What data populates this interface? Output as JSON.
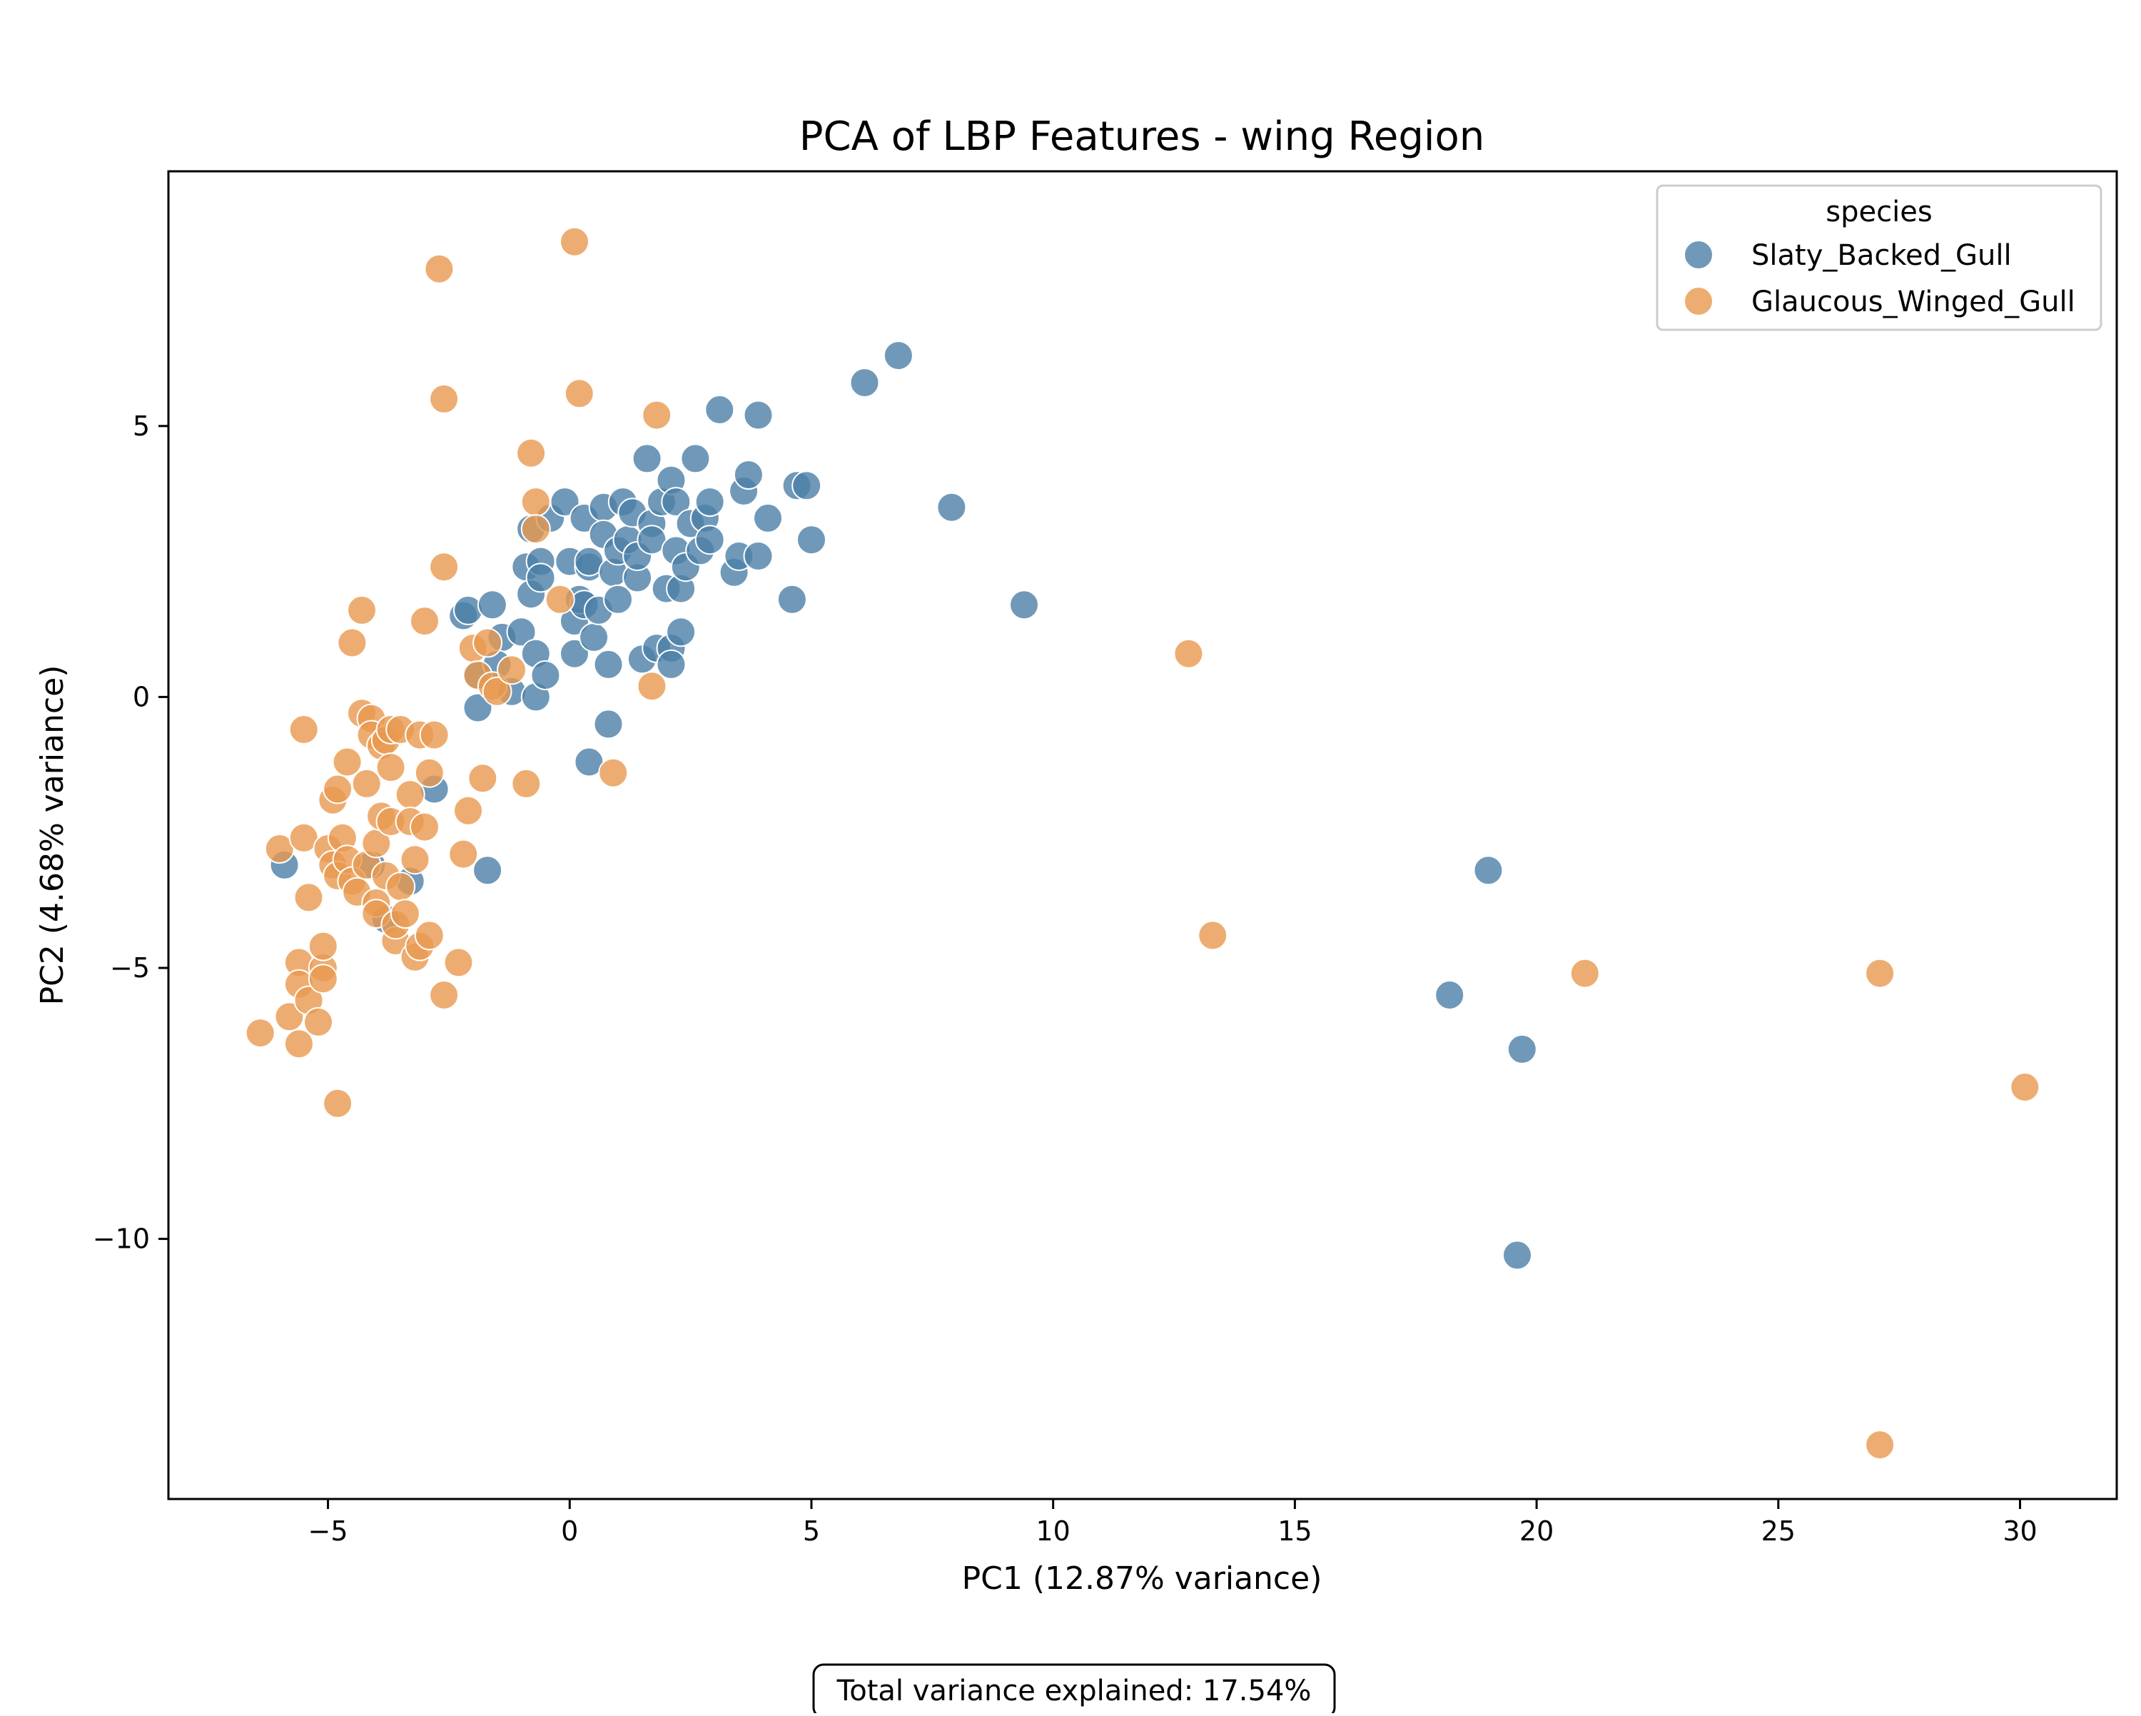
{
  "chart_data": {
    "type": "scatter",
    "title": "PCA of LBP Features - wing Region",
    "xlabel": "PC1 (12.87% variance)",
    "ylabel": "PC2 (4.68% variance)",
    "xlim": [
      -8.3,
      32
    ],
    "ylim": [
      -14.8,
      9.7
    ],
    "xticks": [
      -5,
      0,
      5,
      10,
      15,
      20,
      25,
      30
    ],
    "yticks": [
      -10,
      -5,
      0,
      5
    ],
    "xtick_labels": [
      "−5",
      "0",
      "5",
      "10",
      "15",
      "20",
      "25",
      "30"
    ],
    "ytick_labels": [
      "−10",
      "−5",
      "0",
      "5"
    ],
    "grid": false,
    "legend": {
      "title": "species",
      "position": "upper right"
    },
    "annotation": "Total variance explained: 17.54%",
    "series": [
      {
        "name": "Slaty_Backed_Gull",
        "color": "#4c7fa8",
        "points": [
          [
            -5.9,
            -3.1
          ],
          [
            -4.1,
            -3.1
          ],
          [
            -3.8,
            -4.1
          ],
          [
            -3.3,
            -3.4
          ],
          [
            -2.8,
            -1.7
          ],
          [
            -2.2,
            1.5
          ],
          [
            -2.1,
            1.6
          ],
          [
            -1.9,
            0.4
          ],
          [
            -1.9,
            -0.2
          ],
          [
            -1.7,
            -3.2
          ],
          [
            -1.6,
            1.7
          ],
          [
            -1.4,
            1.1
          ],
          [
            -1.5,
            0.6
          ],
          [
            -1.2,
            0.1
          ],
          [
            -1.0,
            1.2
          ],
          [
            -0.9,
            2.4
          ],
          [
            -0.8,
            1.9
          ],
          [
            -0.8,
            3.1
          ],
          [
            -0.7,
            0.8
          ],
          [
            -0.7,
            0.0
          ],
          [
            -0.6,
            2.5
          ],
          [
            -0.6,
            2.2
          ],
          [
            -0.5,
            0.4
          ],
          [
            -0.4,
            3.3
          ],
          [
            -0.1,
            3.6
          ],
          [
            0.0,
            2.5
          ],
          [
            0.1,
            1.4
          ],
          [
            0.1,
            0.8
          ],
          [
            0.2,
            1.8
          ],
          [
            0.3,
            3.3
          ],
          [
            0.3,
            1.7
          ],
          [
            0.4,
            2.4
          ],
          [
            0.4,
            2.5
          ],
          [
            0.4,
            -1.2
          ],
          [
            0.5,
            1.1
          ],
          [
            0.6,
            1.6
          ],
          [
            0.7,
            3.5
          ],
          [
            0.7,
            3.0
          ],
          [
            0.8,
            0.6
          ],
          [
            0.8,
            -0.5
          ],
          [
            0.9,
            2.3
          ],
          [
            1.0,
            2.7
          ],
          [
            1.0,
            1.8
          ],
          [
            1.1,
            3.6
          ],
          [
            1.2,
            2.9
          ],
          [
            1.3,
            3.4
          ],
          [
            1.4,
            2.2
          ],
          [
            1.4,
            2.6
          ],
          [
            1.5,
            0.7
          ],
          [
            1.6,
            4.4
          ],
          [
            1.7,
            3.2
          ],
          [
            1.7,
            2.9
          ],
          [
            1.8,
            0.9
          ],
          [
            1.9,
            3.6
          ],
          [
            2.0,
            2.0
          ],
          [
            2.1,
            4.0
          ],
          [
            2.1,
            0.9
          ],
          [
            2.1,
            0.6
          ],
          [
            2.2,
            2.7
          ],
          [
            2.2,
            3.6
          ],
          [
            2.3,
            2.0
          ],
          [
            2.3,
            1.2
          ],
          [
            2.4,
            2.4
          ],
          [
            2.5,
            3.2
          ],
          [
            2.6,
            4.4
          ],
          [
            2.7,
            2.7
          ],
          [
            2.8,
            3.3
          ],
          [
            2.9,
            2.9
          ],
          [
            2.9,
            3.6
          ],
          [
            3.1,
            5.3
          ],
          [
            3.4,
            2.3
          ],
          [
            3.5,
            2.6
          ],
          [
            3.6,
            3.8
          ],
          [
            3.7,
            4.1
          ],
          [
            3.9,
            5.2
          ],
          [
            3.9,
            2.6
          ],
          [
            4.1,
            3.3
          ],
          [
            4.6,
            1.8
          ],
          [
            4.7,
            3.9
          ],
          [
            4.9,
            3.9
          ],
          [
            5.0,
            2.9
          ],
          [
            6.1,
            5.8
          ],
          [
            6.8,
            6.3
          ],
          [
            7.9,
            3.5
          ],
          [
            9.4,
            1.7
          ],
          [
            18.2,
            -5.5
          ],
          [
            19.0,
            -3.2
          ],
          [
            19.6,
            -10.3
          ],
          [
            19.7,
            -6.5
          ]
        ]
      },
      {
        "name": "Glaucous_Winged_Gull",
        "color": "#e8994f",
        "points": [
          [
            -6.4,
            -6.2
          ],
          [
            -6.0,
            -2.8
          ],
          [
            -5.8,
            -5.9
          ],
          [
            -5.6,
            -6.4
          ],
          [
            -5.6,
            -4.9
          ],
          [
            -5.6,
            -5.3
          ],
          [
            -5.5,
            -0.6
          ],
          [
            -5.5,
            -2.6
          ],
          [
            -5.4,
            -5.6
          ],
          [
            -5.4,
            -3.7
          ],
          [
            -5.2,
            -6.0
          ],
          [
            -5.1,
            -5.0
          ],
          [
            -5.1,
            -5.2
          ],
          [
            -5.1,
            -4.6
          ],
          [
            -5.0,
            -2.8
          ],
          [
            -4.9,
            -1.9
          ],
          [
            -4.9,
            -3.1
          ],
          [
            -4.8,
            -7.5
          ],
          [
            -4.8,
            -3.3
          ],
          [
            -4.8,
            -1.7
          ],
          [
            -4.7,
            -2.6
          ],
          [
            -4.6,
            -3.0
          ],
          [
            -4.6,
            -1.2
          ],
          [
            -4.5,
            1.0
          ],
          [
            -4.5,
            -3.4
          ],
          [
            -4.4,
            -3.6
          ],
          [
            -4.3,
            1.6
          ],
          [
            -4.3,
            -0.3
          ],
          [
            -4.2,
            -3.1
          ],
          [
            -4.2,
            -1.6
          ],
          [
            -4.1,
            -0.4
          ],
          [
            -4.1,
            -0.7
          ],
          [
            -4.0,
            -2.7
          ],
          [
            -4.0,
            -3.8
          ],
          [
            -4.0,
            -4.0
          ],
          [
            -3.9,
            -2.2
          ],
          [
            -3.9,
            -0.9
          ],
          [
            -3.8,
            -0.8
          ],
          [
            -3.8,
            -3.3
          ],
          [
            -3.7,
            -2.3
          ],
          [
            -3.7,
            -1.3
          ],
          [
            -3.7,
            -0.6
          ],
          [
            -3.6,
            -4.5
          ],
          [
            -3.6,
            -4.2
          ],
          [
            -3.5,
            -0.6
          ],
          [
            -3.5,
            -3.5
          ],
          [
            -3.4,
            -4.0
          ],
          [
            -3.3,
            -1.8
          ],
          [
            -3.3,
            -2.3
          ],
          [
            -3.2,
            -3.0
          ],
          [
            -3.2,
            -4.8
          ],
          [
            -3.1,
            -0.7
          ],
          [
            -3.1,
            -4.6
          ],
          [
            -3.0,
            1.4
          ],
          [
            -3.0,
            -2.4
          ],
          [
            -2.9,
            -1.4
          ],
          [
            -2.9,
            -4.4
          ],
          [
            -2.8,
            -0.7
          ],
          [
            -2.7,
            7.9
          ],
          [
            -2.6,
            5.5
          ],
          [
            -2.6,
            2.4
          ],
          [
            -2.6,
            -5.5
          ],
          [
            -2.3,
            -4.9
          ],
          [
            -2.2,
            -2.9
          ],
          [
            -2.1,
            -2.1
          ],
          [
            -2.0,
            0.9
          ],
          [
            -1.9,
            0.4
          ],
          [
            -1.8,
            -1.5
          ],
          [
            -1.7,
            1.0
          ],
          [
            -1.6,
            0.2
          ],
          [
            -1.5,
            0.1
          ],
          [
            -1.2,
            0.5
          ],
          [
            -0.9,
            -1.6
          ],
          [
            -0.8,
            4.5
          ],
          [
            -0.7,
            3.6
          ],
          [
            -0.7,
            3.1
          ],
          [
            -0.2,
            1.8
          ],
          [
            0.1,
            8.4
          ],
          [
            0.2,
            5.6
          ],
          [
            0.9,
            -1.4
          ],
          [
            1.7,
            0.2
          ],
          [
            1.8,
            5.2
          ],
          [
            12.8,
            0.8
          ],
          [
            13.3,
            -4.4
          ],
          [
            21.0,
            -5.1
          ],
          [
            27.1,
            -5.1
          ],
          [
            27.1,
            -13.8
          ],
          [
            30.1,
            -7.2
          ]
        ]
      }
    ]
  }
}
